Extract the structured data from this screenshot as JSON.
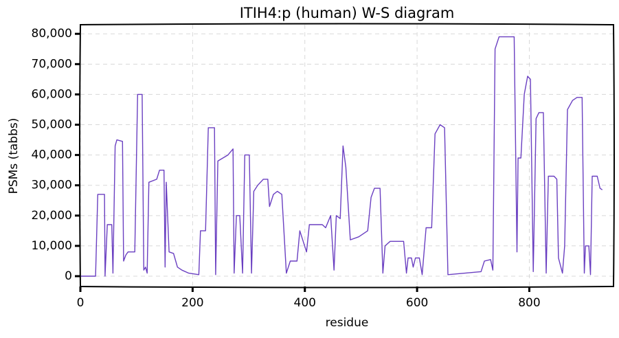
{
  "chart_data": {
    "type": "line",
    "title": "ITIH4:p (human) W-S diagram",
    "xlabel": "residue",
    "ylabel": "PSMs (tabbs)",
    "color": "#6a3fc1",
    "grid": true,
    "xlim": [
      0,
      950
    ],
    "ylim": [
      -3400,
      83000
    ],
    "xticks": [
      0,
      200,
      400,
      600,
      800
    ],
    "yticks": [
      0,
      {
        "value": 10000,
        "label": "10,000"
      },
      {
        "value": 20000,
        "label": "20,000"
      },
      {
        "value": 30000,
        "label": "30,000"
      },
      {
        "value": 40000,
        "label": "40,000"
      },
      {
        "value": 50000,
        "label": "50,000"
      },
      {
        "value": 60000,
        "label": "60,000"
      },
      {
        "value": 70000,
        "label": "70,000"
      },
      {
        "value": 80000,
        "label": "80,000"
      }
    ],
    "x": [
      0,
      27,
      31,
      43,
      44,
      48,
      56,
      58,
      62,
      65,
      75,
      77,
      81,
      85,
      97,
      102,
      110,
      113,
      116,
      119,
      122,
      136,
      141,
      149,
      151,
      153,
      158,
      166,
      173,
      181,
      193,
      211,
      214,
      223,
      228,
      239,
      241,
      245,
      263,
      272,
      274,
      278,
      284,
      289,
      293,
      301,
      305,
      309,
      316,
      326,
      334,
      337,
      344,
      351,
      359,
      367,
      374,
      386,
      391,
      403,
      408,
      431,
      437,
      446,
      452,
      456,
      463,
      468,
      473,
      481,
      496,
      512,
      518,
      524,
      534,
      539,
      543,
      552,
      576,
      581,
      584,
      590,
      593,
      597,
      604,
      609,
      616,
      626,
      632,
      641,
      649,
      655,
      714,
      720,
      731,
      735,
      739,
      746,
      773,
      778,
      780,
      785,
      791,
      797,
      802,
      807,
      812,
      817,
      825,
      830,
      834,
      844,
      849,
      852,
      859,
      863,
      868,
      877,
      885,
      894,
      898,
      900,
      906,
      909,
      912,
      921,
      926,
      930
    ],
    "values": [
      0,
      0,
      27000,
      27000,
      0,
      17000,
      17000,
      1000,
      43000,
      45000,
      44500,
      5000,
      7000,
      8000,
      8000,
      60000,
      60000,
      2000,
      3000,
      1000,
      31000,
      32000,
      35000,
      35000,
      3000,
      31000,
      8000,
      7500,
      3000,
      2000,
      1000,
      500,
      15000,
      15000,
      49000,
      49000,
      500,
      38000,
      40000,
      42000,
      1000,
      20000,
      20000,
      1000,
      40000,
      40000,
      1000,
      28000,
      30000,
      32000,
      32000,
      23000,
      27000,
      28000,
      27000,
      1000,
      5000,
      5000,
      15000,
      8000,
      17000,
      17000,
      16000,
      20000,
      2000,
      20000,
      19000,
      43000,
      36000,
      12000,
      13000,
      15000,
      26000,
      29000,
      29000,
      1000,
      10000,
      11500,
      11500,
      1000,
      6000,
      6000,
      3000,
      6000,
      6000,
      500,
      16000,
      16000,
      47000,
      50000,
      49000,
      500,
      1500,
      5000,
      5500,
      2000,
      75000,
      79000,
      79000,
      8000,
      39000,
      39000,
      60000,
      66000,
      65000,
      1500,
      52000,
      54000,
      54000,
      1000,
      33000,
      33000,
      32000,
      6000,
      1000,
      10000,
      55000,
      58000,
      59000,
      59000,
      1000,
      10000,
      10000,
      500,
      33000,
      33000,
      29000,
      28500
    ]
  }
}
